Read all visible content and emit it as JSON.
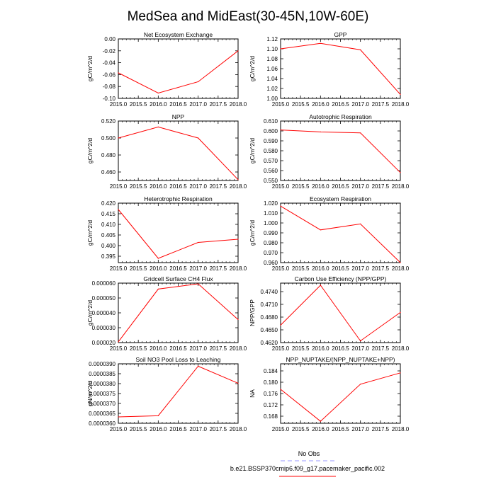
{
  "title": "MedSea and MidEast(30-45N,10W-60E)",
  "legend": {
    "entries": [
      {
        "label": "No Obs",
        "color": "#9999ff",
        "dash": "6,4"
      },
      {
        "label": "b.e21.BSSP370cmip6.f09_g17.pacemaker_pacific.002",
        "color": "#ff0000",
        "dash": ""
      }
    ]
  },
  "line_color": "#ff0000",
  "chart_data": [
    {
      "type": "line",
      "title": "Net Ecosystem Exchange",
      "ylabel": "gC/m^2/d",
      "x": [
        2015,
        2016,
        2017,
        2018
      ],
      "xlim": [
        2015,
        2018
      ],
      "xticks": [
        "2015.0",
        "2015.5",
        "2016.0",
        "2016.5",
        "2017.0",
        "2017.5",
        "2018.0"
      ],
      "ylim": [
        -0.1,
        0.0
      ],
      "yticks": [
        "-0.10",
        "-0.08",
        "-0.06",
        "-0.04",
        "-0.02",
        "0.00"
      ],
      "yticks_at": [
        -0.1,
        -0.08,
        -0.06,
        -0.04,
        -0.02,
        0.0
      ],
      "series": [
        {
          "values": [
            -0.057,
            -0.091,
            -0.072,
            -0.02
          ]
        }
      ]
    },
    {
      "type": "line",
      "title": "GPP",
      "ylabel": "gC/m^2/d",
      "x": [
        2015,
        2016,
        2017,
        2018
      ],
      "xlim": [
        2015,
        2018
      ],
      "xticks": [
        "2015.0",
        "2015.5",
        "2016.0",
        "2016.5",
        "2017.0",
        "2017.5",
        "2018.0"
      ],
      "ylim": [
        1.0,
        1.12
      ],
      "yticks": [
        "1.00",
        "1.02",
        "1.04",
        "1.06",
        "1.08",
        "1.10",
        "1.12"
      ],
      "yticks_at": [
        1.0,
        1.02,
        1.04,
        1.06,
        1.08,
        1.1,
        1.12
      ],
      "series": [
        {
          "values": [
            1.1,
            1.111,
            1.098,
            1.008
          ]
        }
      ]
    },
    {
      "type": "line",
      "title": "NPP",
      "ylabel": "gC/m^2/d",
      "x": [
        2015,
        2016,
        2017,
        2018
      ],
      "xlim": [
        2015,
        2018
      ],
      "xticks": [
        "2015.0",
        "2015.5",
        "2016.0",
        "2016.5",
        "2017.0",
        "2017.5",
        "2018.0"
      ],
      "ylim": [
        0.45,
        0.52
      ],
      "yticks": [
        "0.460",
        "0.480",
        "0.500",
        "0.520"
      ],
      "yticks_at": [
        0.46,
        0.48,
        0.5,
        0.52
      ],
      "series": [
        {
          "values": [
            0.5,
            0.513,
            0.5,
            0.451
          ]
        }
      ]
    },
    {
      "type": "line",
      "title": "Autotrophic Respiration",
      "ylabel": "gC/m^2/d",
      "x": [
        2015,
        2016,
        2017,
        2018
      ],
      "xlim": [
        2015,
        2018
      ],
      "xticks": [
        "2015.0",
        "2015.5",
        "2016.0",
        "2016.5",
        "2017.0",
        "2017.5",
        "2018.0"
      ],
      "ylim": [
        0.55,
        0.61
      ],
      "yticks": [
        "0.550",
        "0.560",
        "0.570",
        "0.580",
        "0.590",
        "0.600",
        "0.610"
      ],
      "yticks_at": [
        0.55,
        0.56,
        0.57,
        0.58,
        0.59,
        0.6,
        0.61
      ],
      "series": [
        {
          "values": [
            0.601,
            0.599,
            0.598,
            0.558
          ]
        }
      ]
    },
    {
      "type": "line",
      "title": "Heterotrophic Respiration",
      "ylabel": "gC/m^2/d",
      "x": [
        2015,
        2016,
        2017,
        2018
      ],
      "xlim": [
        2015,
        2018
      ],
      "xticks": [
        "2015.0",
        "2015.5",
        "2016.0",
        "2016.5",
        "2017.0",
        "2017.5",
        "2018.0"
      ],
      "ylim": [
        0.392,
        0.42
      ],
      "yticks": [
        "0.395",
        "0.400",
        "0.405",
        "0.410",
        "0.415",
        "0.420"
      ],
      "yticks_at": [
        0.395,
        0.4,
        0.405,
        0.41,
        0.415,
        0.42
      ],
      "series": [
        {
          "values": [
            0.417,
            0.394,
            0.4015,
            0.403
          ]
        }
      ]
    },
    {
      "type": "line",
      "title": "Ecosystem Respiration",
      "ylabel": "gC/m^2/d",
      "x": [
        2015,
        2016,
        2017,
        2018
      ],
      "xlim": [
        2015,
        2018
      ],
      "xticks": [
        "2015.0",
        "2015.5",
        "2016.0",
        "2016.5",
        "2017.0",
        "2017.5",
        "2018.0"
      ],
      "ylim": [
        0.96,
        1.02
      ],
      "yticks": [
        "0.960",
        "0.970",
        "0.980",
        "0.990",
        "1.000",
        "1.010",
        "1.020"
      ],
      "yticks_at": [
        0.96,
        0.97,
        0.98,
        0.99,
        1.0,
        1.01,
        1.02
      ],
      "series": [
        {
          "values": [
            1.017,
            0.993,
            0.999,
            0.96
          ]
        }
      ]
    },
    {
      "type": "line",
      "title": "Gridcell Surface CH4 Flux",
      "ylabel": "gC/m^2/d",
      "x": [
        2015,
        2016,
        2017,
        2018
      ],
      "xlim": [
        2015,
        2018
      ],
      "xticks": [
        "2015.0",
        "2015.5",
        "2016.0",
        "2016.5",
        "2017.0",
        "2017.5",
        "2018.0"
      ],
      "ylim": [
        2e-05,
        6e-05
      ],
      "yticks": [
        "0.000020",
        "0.000030",
        "0.000040",
        "0.000050",
        "0.000060"
      ],
      "yticks_at": [
        2e-05,
        3e-05,
        4e-05,
        5e-05,
        6e-05
      ],
      "series": [
        {
          "values": [
            2.05e-05,
            5.6e-05,
            5.95e-05,
            3.55e-05
          ]
        }
      ]
    },
    {
      "type": "line",
      "title": "Carbon Use Efficiency (NPP/GPP)",
      "ylabel": "NPP/GPP",
      "x": [
        2015,
        2016,
        2017,
        2018
      ],
      "xlim": [
        2015,
        2018
      ],
      "xticks": [
        "2015.0",
        "2015.5",
        "2016.0",
        "2016.5",
        "2017.0",
        "2017.5",
        "2018.0"
      ],
      "ylim": [
        0.462,
        0.476
      ],
      "yticks": [
        "0.4620",
        "0.4650",
        "0.4680",
        "0.4710",
        "0.4740"
      ],
      "yticks_at": [
        0.462,
        0.465,
        0.468,
        0.471,
        0.474
      ],
      "series": [
        {
          "values": [
            0.4661,
            0.4755,
            0.4624,
            0.4691
          ]
        }
      ]
    },
    {
      "type": "line",
      "title": "Soil NO3 Pool Loss to Leaching",
      "ylabel": "gN/m^2/d",
      "x": [
        2015,
        2016,
        2017,
        2018
      ],
      "xlim": [
        2015,
        2018
      ],
      "xticks": [
        "2015.0",
        "2015.5",
        "2016.0",
        "2016.5",
        "2017.0",
        "2017.5",
        "2018.0"
      ],
      "ylim": [
        3.6e-05,
        3.9e-05
      ],
      "yticks": [
        "0.0000360",
        "0.0000365",
        "0.0000370",
        "0.0000375",
        "0.0000380",
        "0.0000385",
        "0.0000390"
      ],
      "yticks_at": [
        3.6e-05,
        3.65e-05,
        3.7e-05,
        3.75e-05,
        3.8e-05,
        3.85e-05,
        3.9e-05
      ],
      "series": [
        {
          "values": [
            3.632e-05,
            3.638e-05,
            3.888e-05,
            3.802e-05
          ]
        }
      ]
    },
    {
      "type": "line",
      "title": "NPP_NUPTAKE/(NPP_NUPTAKE+NPP)",
      "ylabel": "NA",
      "x": [
        2015,
        2016,
        2017,
        2018
      ],
      "xlim": [
        2015,
        2018
      ],
      "xticks": [
        "2015.0",
        "2015.5",
        "2016.0",
        "2016.5",
        "2017.0",
        "2017.5",
        "2018.0"
      ],
      "ylim": [
        0.1655,
        0.1865
      ],
      "yticks": [
        "0.168",
        "0.172",
        "0.176",
        "0.180",
        "0.184"
      ],
      "yticks_at": [
        0.168,
        0.172,
        0.176,
        0.18,
        0.184
      ],
      "series": [
        {
          "values": [
            0.1775,
            0.1662,
            0.1793,
            0.1833
          ]
        }
      ]
    }
  ]
}
